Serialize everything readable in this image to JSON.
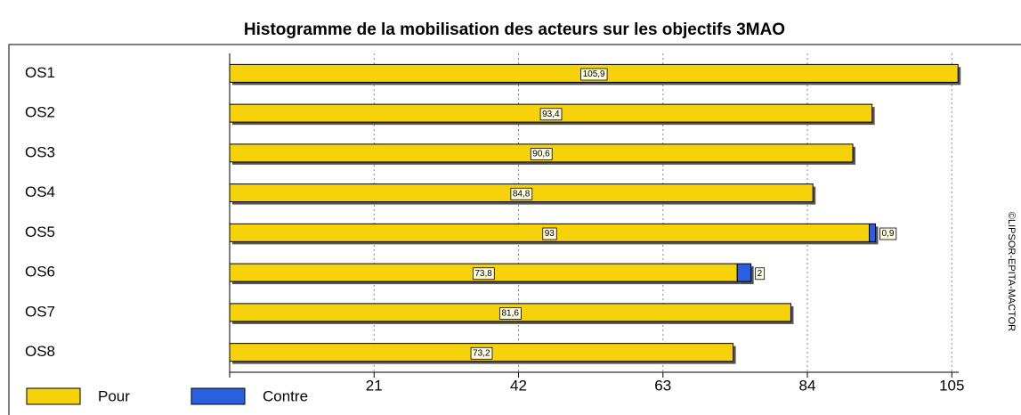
{
  "chart_data": {
    "type": "stacked_barh",
    "title": "Histogramme de la mobilisation des acteurs sur les objectifs 3MAO",
    "categories": [
      "OS1",
      "OS2",
      "OS3",
      "OS4",
      "OS5",
      "OS6",
      "OS7",
      "OS8"
    ],
    "series": [
      {
        "name": "Pour",
        "color": "#f5d20a",
        "values": [
          105.9,
          93.4,
          90.6,
          84.8,
          93,
          73.8,
          81.6,
          73.2
        ],
        "value_labels": [
          "105,9",
          "93,4",
          "90,6",
          "84,8",
          "93",
          "73,8",
          "81,6",
          "73,2"
        ]
      },
      {
        "name": "Contre",
        "color": "#2a5fe0",
        "values": [
          null,
          null,
          null,
          null,
          0.9,
          2,
          null,
          null
        ],
        "value_labels": [
          null,
          null,
          null,
          null,
          "0,9",
          "2",
          null,
          null
        ]
      }
    ],
    "xlim": [
      0,
      106
    ],
    "xticks": [
      21,
      42,
      63,
      84,
      105
    ],
    "grid": true,
    "legend": "bottom-left",
    "watermark": "©LIPSOR-EPITA-MACTOR"
  }
}
